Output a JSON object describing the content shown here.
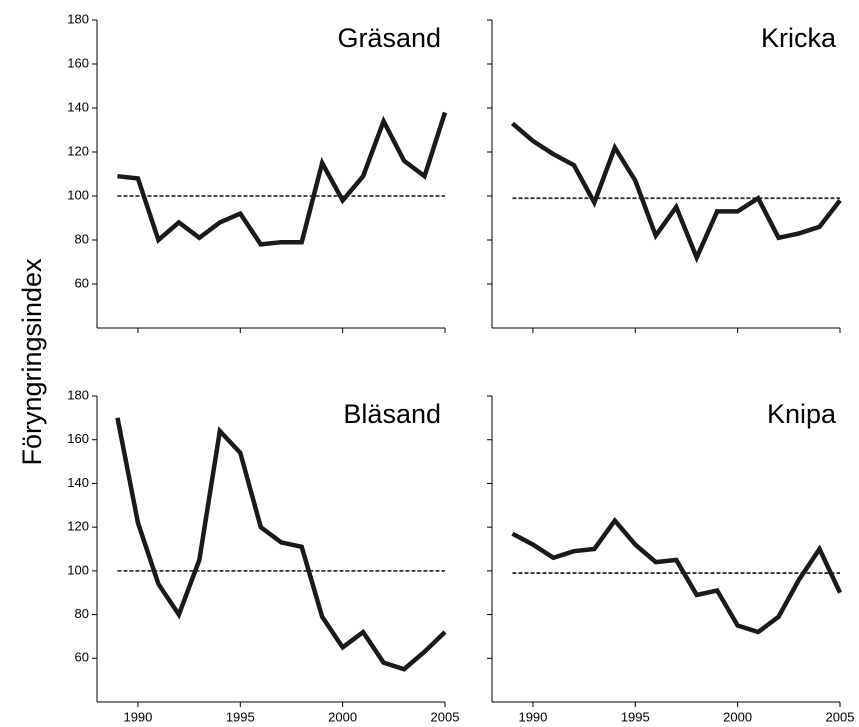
{
  "ylabel": "Föryngringsindex",
  "chart_data": [
    {
      "type": "line",
      "title": "Gräsand",
      "x": [
        1989,
        1990,
        1991,
        1992,
        1993,
        1994,
        1995,
        1996,
        1997,
        1998,
        1999,
        2000,
        2001,
        2002,
        2003,
        2004,
        2005
      ],
      "series": [
        {
          "color": "#1a1a1a",
          "values": [
            109,
            108,
            80,
            88,
            81,
            88,
            92,
            78,
            79,
            79,
            115,
            98,
            109,
            134,
            116,
            109,
            138
          ]
        }
      ],
      "reference": 100,
      "xlim": [
        1988,
        2005
      ],
      "ylim": [
        40,
        180
      ],
      "xticks": [
        1990,
        1995,
        2000,
        2005
      ],
      "yticks": [
        60,
        80,
        100,
        120,
        140,
        160,
        180
      ]
    },
    {
      "type": "line",
      "title": "Kricka",
      "x": [
        1989,
        1990,
        1991,
        1992,
        1993,
        1994,
        1995,
        1996,
        1997,
        1998,
        1999,
        2000,
        2001,
        2002,
        2003,
        2004,
        2005
      ],
      "series": [
        {
          "color": "#1a1a1a",
          "values": [
            133,
            125,
            119,
            114,
            97,
            122,
            107,
            82,
            95,
            72,
            93,
            93,
            99,
            81,
            83,
            86,
            98
          ]
        }
      ],
      "reference": 99,
      "xlim": [
        1988,
        2005
      ],
      "ylim": [
        40,
        180
      ],
      "xticks": [
        1990,
        1995,
        2000,
        2005
      ],
      "yticks": [
        60,
        80,
        100,
        120,
        140,
        160,
        180
      ]
    },
    {
      "type": "line",
      "title": "Bläsand",
      "x": [
        1989,
        1990,
        1991,
        1992,
        1993,
        1994,
        1995,
        1996,
        1997,
        1998,
        1999,
        2000,
        2001,
        2002,
        2003,
        2004,
        2005
      ],
      "series": [
        {
          "color": "#1a1a1a",
          "values": [
            170,
            122,
            94,
            80,
            105,
            164,
            154,
            120,
            113,
            111,
            79,
            65,
            72,
            58,
            55,
            63,
            72
          ]
        }
      ],
      "reference": 100,
      "xlim": [
        1988,
        2005
      ],
      "ylim": [
        40,
        180
      ],
      "xticks": [
        1990,
        1995,
        2000,
        2005
      ],
      "yticks": [
        60,
        80,
        100,
        120,
        140,
        160,
        180
      ]
    },
    {
      "type": "line",
      "title": "Knipa",
      "x": [
        1989,
        1990,
        1991,
        1992,
        1993,
        1994,
        1995,
        1996,
        1997,
        1998,
        1999,
        2000,
        2001,
        2002,
        2003,
        2004,
        2005
      ],
      "series": [
        {
          "color": "#1a1a1a",
          "values": [
            117,
            112,
            106,
            109,
            110,
            123,
            112,
            104,
            105,
            89,
            91,
            75,
            72,
            79,
            96,
            110,
            90
          ]
        }
      ],
      "reference": 99,
      "xlim": [
        1988,
        2005
      ],
      "ylim": [
        40,
        180
      ],
      "xticks": [
        1990,
        1995,
        2000,
        2005
      ],
      "yticks": [
        60,
        80,
        100,
        120,
        140,
        160,
        180
      ]
    }
  ]
}
